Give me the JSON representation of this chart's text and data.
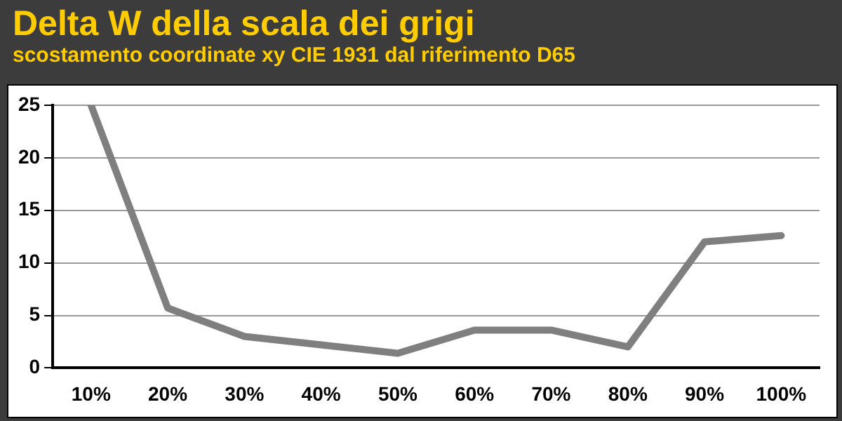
{
  "chart_data": {
    "type": "line",
    "title": "Delta W della scala dei grigi",
    "subtitle": "scostamento coordinate xy CIE 1931 dal riferimento D65",
    "categories": [
      "10%",
      "20%",
      "30%",
      "40%",
      "50%",
      "60%",
      "70%",
      "80%",
      "90%",
      "100%"
    ],
    "series": [
      {
        "color": "#7f7f7f",
        "values": [
          25,
          5.7,
          3.0,
          2.2,
          1.4,
          3.6,
          3.6,
          2.0,
          12.0,
          12.6
        ]
      }
    ],
    "ylim": [
      0,
      25
    ],
    "yticks": [
      0,
      5,
      10,
      15,
      20,
      25
    ],
    "grid": "y",
    "legend": false,
    "marker": "none",
    "line_style": "solid"
  }
}
